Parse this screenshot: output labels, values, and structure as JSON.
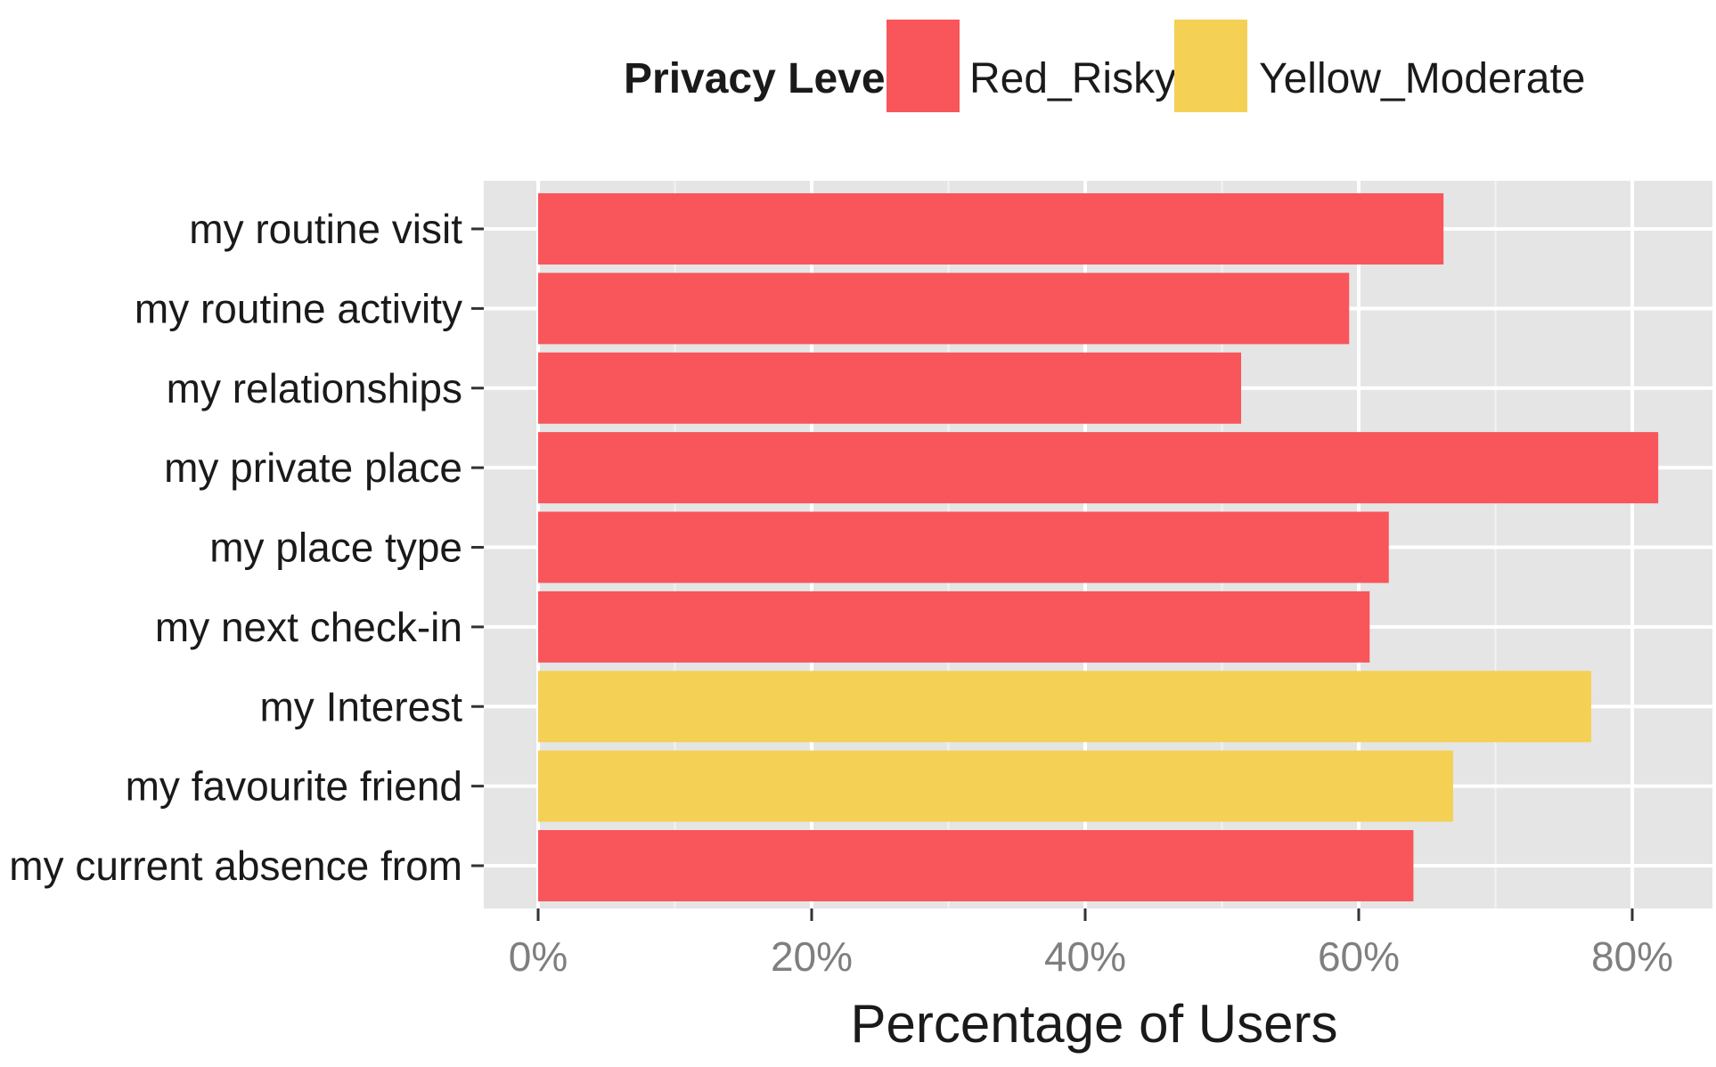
{
  "chart_data": {
    "type": "bar",
    "orientation": "horizontal",
    "title": "",
    "xlabel": "Percentage of Users",
    "ylabel": "",
    "xlim": [
      0,
      0.86
    ],
    "grid": true,
    "x_ticks": [
      {
        "value": 0,
        "label": "0%"
      },
      {
        "value": 0.2,
        "label": "20%"
      },
      {
        "value": 0.4,
        "label": "40%"
      },
      {
        "value": 0.6,
        "label": "60%"
      },
      {
        "value": 0.8,
        "label": "80%"
      }
    ],
    "legend": {
      "title": "Privacy Level",
      "placement": "top",
      "entries": [
        {
          "label": "Red_Risky",
          "color": "#f8565a"
        },
        {
          "label": "Yellow_Moderate",
          "color": "#f4d154"
        }
      ]
    },
    "categories": [
      "my routine visit",
      "my routine activity",
      "my relationships",
      "my private place",
      "my place type",
      "my next check-in",
      "my Interest",
      "my favourite friend",
      "my current absence from"
    ],
    "values": [
      0.662,
      0.593,
      0.514,
      0.819,
      0.622,
      0.608,
      0.77,
      0.669,
      0.64
    ],
    "levels": [
      "Red_Risky",
      "Red_Risky",
      "Red_Risky",
      "Red_Risky",
      "Red_Risky",
      "Red_Risky",
      "Yellow_Moderate",
      "Yellow_Moderate",
      "Red_Risky"
    ]
  },
  "colors": {
    "panel_background": "#e5e5e5",
    "grid_major": "#ffffff",
    "grid_minor": "#f2f2f2",
    "tick_color": "#333333"
  }
}
